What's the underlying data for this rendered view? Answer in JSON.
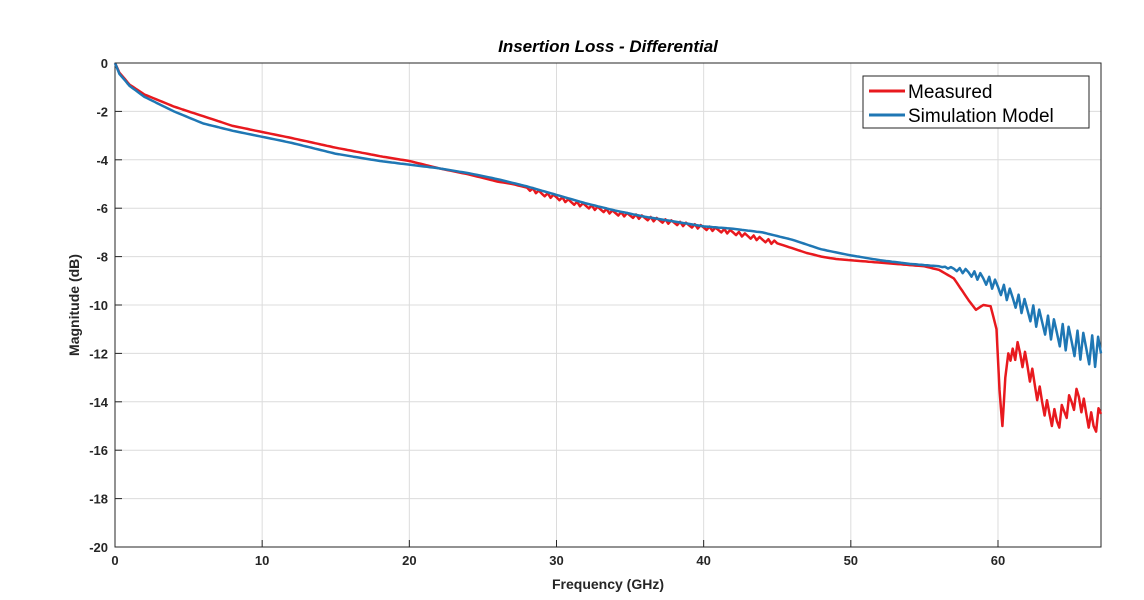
{
  "chart_data": {
    "type": "line",
    "title": "Insertion Loss - Differential",
    "xlabel": "Frequency (GHz)",
    "ylabel": "Magnitude (dB)",
    "xlim": [
      0,
      67
    ],
    "ylim": [
      -20,
      0
    ],
    "xticks": [
      0,
      10,
      20,
      30,
      40,
      50,
      60
    ],
    "yticks": [
      0,
      -2,
      -4,
      -6,
      -8,
      -10,
      -12,
      -14,
      -16,
      -18,
      -20
    ],
    "grid": true,
    "legend_position": "top-right",
    "series": [
      {
        "name": "Measured",
        "color": "#e8191e",
        "x": [
          0,
          0.3,
          1,
          2,
          4,
          6,
          8,
          10,
          12,
          15,
          18,
          20,
          22,
          24,
          26,
          27,
          28,
          29,
          30,
          31,
          32,
          33,
          34,
          35,
          36,
          37,
          38,
          39,
          40,
          41,
          42,
          43,
          44,
          45,
          46,
          47,
          48,
          49,
          50,
          51,
          52,
          53,
          54,
          55,
          56,
          57,
          58,
          58.5,
          59,
          59.5,
          59.9,
          60.1,
          60.3,
          60.5,
          60.7,
          61,
          61.5,
          62,
          62.5,
          63,
          63.5,
          64,
          64.5,
          65,
          65.5,
          66,
          66.5,
          67
        ],
        "y": [
          0,
          -0.4,
          -0.9,
          -1.3,
          -1.8,
          -2.2,
          -2.6,
          -2.85,
          -3.1,
          -3.5,
          -3.85,
          -4.05,
          -4.35,
          -4.6,
          -4.9,
          -5.0,
          -5.15,
          -5.4,
          -5.55,
          -5.75,
          -5.9,
          -6.05,
          -6.2,
          -6.3,
          -6.4,
          -6.5,
          -6.6,
          -6.7,
          -6.8,
          -6.9,
          -7.0,
          -7.15,
          -7.3,
          -7.45,
          -7.65,
          -7.85,
          -8.0,
          -8.1,
          -8.15,
          -8.2,
          -8.25,
          -8.3,
          -8.35,
          -8.4,
          -8.55,
          -8.9,
          -9.8,
          -10.2,
          -10.0,
          -10.05,
          -11.0,
          -13.5,
          -15.0,
          -13.0,
          -12.0,
          -11.8,
          -12.0,
          -12.5,
          -13.3,
          -14.0,
          -14.5,
          -14.8,
          -14.4,
          -14.0,
          -13.8,
          -14.5,
          -15.0,
          -14.5
        ]
      },
      {
        "name": "Simulation Model",
        "color": "#1f77b4",
        "x": [
          0,
          0.3,
          1,
          2,
          4,
          6,
          8,
          10,
          12,
          15,
          18,
          20,
          22,
          24,
          26,
          28,
          30,
          32,
          34,
          36,
          38,
          40,
          42,
          44,
          46,
          48,
          50,
          52,
          54,
          56,
          57,
          58,
          59,
          60,
          61,
          62,
          63,
          64,
          65,
          66,
          67
        ],
        "y": [
          0,
          -0.45,
          -0.95,
          -1.4,
          -2.0,
          -2.5,
          -2.8,
          -3.05,
          -3.3,
          -3.75,
          -4.05,
          -4.2,
          -4.35,
          -4.55,
          -4.8,
          -5.1,
          -5.45,
          -5.8,
          -6.1,
          -6.35,
          -6.55,
          -6.75,
          -6.85,
          -7.0,
          -7.3,
          -7.7,
          -7.95,
          -8.15,
          -8.3,
          -8.4,
          -8.5,
          -8.65,
          -8.9,
          -9.25,
          -9.7,
          -10.2,
          -10.7,
          -11.15,
          -11.5,
          -11.8,
          -12.0
        ]
      }
    ]
  }
}
